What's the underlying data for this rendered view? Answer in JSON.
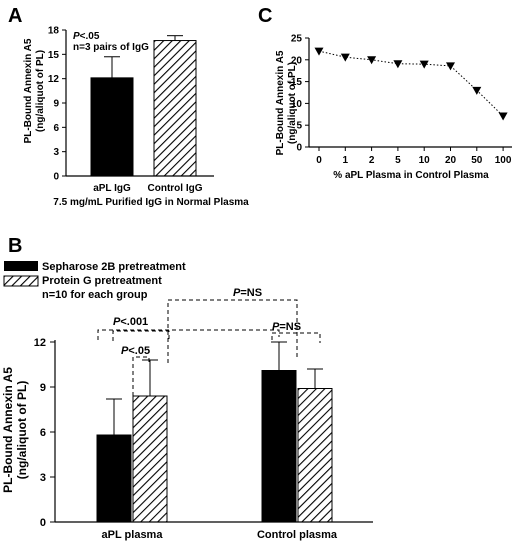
{
  "chart_data": [
    {
      "panel": "A",
      "type": "bar",
      "categories": [
        "aPL IgG",
        "Control IgG"
      ],
      "values": [
        12.1,
        16.7
      ],
      "errors": [
        2.6,
        0.6
      ],
      "fills": [
        "solid",
        "hatched"
      ],
      "xlabel": "7.5 mg/mL Purified IgG in Normal Plasma",
      "ylabel": [
        "PL-Bound Annexin A5",
        "(ng/aliquot of PL)"
      ],
      "ylim": [
        0,
        18
      ],
      "yticks": [
        0,
        3,
        6,
        9,
        12,
        15,
        18
      ],
      "annotations": [
        {
          "italic": "P",
          "text": "<.05"
        },
        {
          "text": "n=3 pairs of IgG"
        }
      ]
    },
    {
      "panel": "C",
      "type": "line",
      "categories": [
        "0",
        "1",
        "2",
        "5",
        "10",
        "20",
        "50",
        "100"
      ],
      "values": [
        22.0,
        20.6,
        20.0,
        19.1,
        19.0,
        18.6,
        13.0,
        7.1
      ],
      "marker": "triangle-down",
      "line_style": "dotted",
      "xlabel": "% aPL Plasma in Control Plasma",
      "ylabel": [
        "PL-Bound Annexin A5",
        "(ng/aliquot of PL)"
      ],
      "ylim": [
        0,
        25
      ],
      "yticks": [
        0,
        5,
        10,
        15,
        20,
        25
      ]
    },
    {
      "panel": "B",
      "type": "bar",
      "categories": [
        "aPL plasma",
        "Control plasma"
      ],
      "series": [
        {
          "name": "Sepharose 2B pretreatment",
          "fill": "solid",
          "values": [
            5.8,
            10.1
          ],
          "errors": [
            2.4,
            1.9
          ]
        },
        {
          "name": "Protein G pretreatment",
          "fill": "hatched",
          "values": [
            8.4,
            8.9
          ],
          "errors": [
            2.4,
            1.3
          ]
        }
      ],
      "ylabel": [
        "PL-Bound Annexin A5",
        "(ng/aliquot of PL)"
      ],
      "ylim": [
        0,
        12
      ],
      "yticks": [
        0,
        3,
        6,
        9,
        12
      ],
      "legend_note": "n=10 for each group",
      "comparisons": [
        {
          "italic": "P",
          "text": "<.05"
        },
        {
          "italic": "P",
          "text": "<.001"
        },
        {
          "italic": "P",
          "text": "=NS"
        },
        {
          "italic": "P",
          "text": "=NS"
        }
      ]
    }
  ],
  "panel_labels": [
    "A",
    "C",
    "B"
  ],
  "colors": {
    "bar": "#000000",
    "hatch": "#000000",
    "background": "#ffffff"
  }
}
